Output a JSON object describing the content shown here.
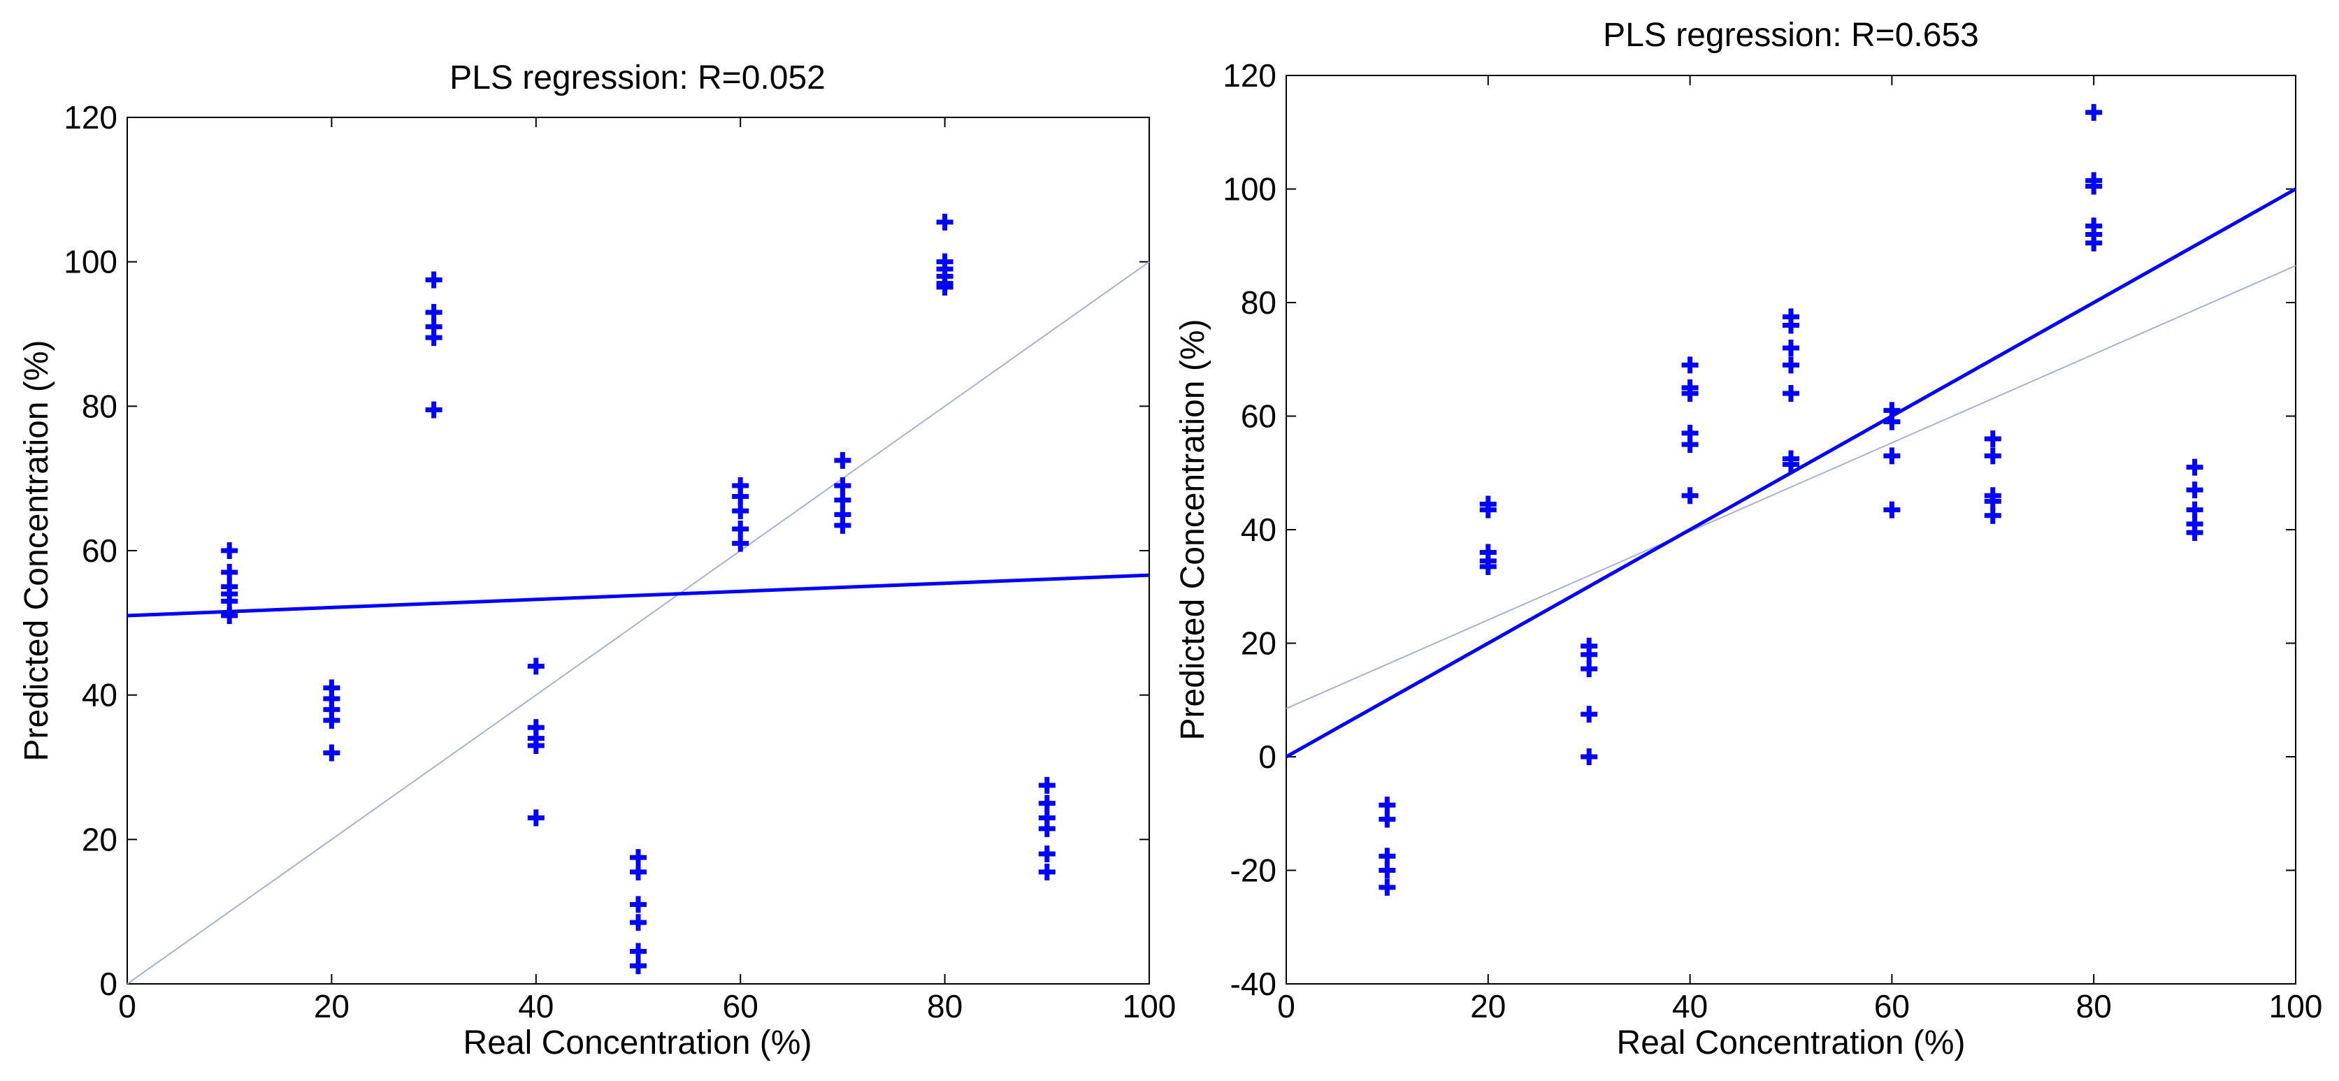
{
  "colors": {
    "marker": "#0000ff",
    "fit_line": "#0000ff",
    "diagonal_line": "#a8b0d8",
    "axis": "#000000"
  },
  "chart_data": [
    {
      "type": "scatter",
      "title": "PLS regression: R=0.052",
      "xlabel": "Real Concentration (%)",
      "ylabel": "Predicted Concentration (%)",
      "xlim": [
        0,
        100
      ],
      "ylim": [
        0,
        120
      ],
      "xticks": [
        0,
        20,
        40,
        60,
        80,
        100
      ],
      "yticks": [
        0,
        20,
        40,
        60,
        80,
        100,
        120
      ],
      "grid": false,
      "marker": "+",
      "points": [
        [
          10,
          60
        ],
        [
          10,
          57
        ],
        [
          10,
          55
        ],
        [
          10,
          54
        ],
        [
          10,
          53
        ],
        [
          10,
          51
        ],
        [
          20,
          41
        ],
        [
          20,
          39.5
        ],
        [
          20,
          38
        ],
        [
          20,
          36.5
        ],
        [
          20,
          32
        ],
        [
          30,
          97.5
        ],
        [
          30,
          93
        ],
        [
          30,
          91
        ],
        [
          30,
          89.5
        ],
        [
          30,
          79.5
        ],
        [
          40,
          44
        ],
        [
          40,
          35.5
        ],
        [
          40,
          34
        ],
        [
          40,
          33
        ],
        [
          40,
          23
        ],
        [
          50,
          17.5
        ],
        [
          50,
          15.5
        ],
        [
          50,
          11
        ],
        [
          50,
          8.5
        ],
        [
          50,
          4.5
        ],
        [
          50,
          2.5
        ],
        [
          60,
          69
        ],
        [
          60,
          67.5
        ],
        [
          60,
          65.5
        ],
        [
          60,
          63
        ],
        [
          60,
          61
        ],
        [
          70,
          72.5
        ],
        [
          70,
          69
        ],
        [
          70,
          67
        ],
        [
          70,
          65
        ],
        [
          70,
          63.5
        ],
        [
          80,
          105.5
        ],
        [
          80,
          100
        ],
        [
          80,
          99
        ],
        [
          80,
          98
        ],
        [
          80,
          97
        ],
        [
          80,
          96.5
        ],
        [
          90,
          27.5
        ],
        [
          90,
          25
        ],
        [
          90,
          23
        ],
        [
          90,
          21.5
        ],
        [
          90,
          18
        ],
        [
          90,
          15.5
        ]
      ],
      "fit_line": {
        "x": [
          0,
          100
        ],
        "y": [
          51,
          56.6
        ]
      },
      "diagonal_line": {
        "x": [
          0,
          100
        ],
        "y": [
          0,
          100
        ]
      }
    },
    {
      "type": "scatter",
      "title": "PLS regression: R=0.653",
      "xlabel": "Real Concentration (%)",
      "ylabel": "Predicted Concentration (%)",
      "xlim": [
        0,
        100
      ],
      "ylim": [
        -40,
        120
      ],
      "xticks": [
        0,
        20,
        40,
        60,
        80,
        100
      ],
      "yticks": [
        -40,
        -20,
        0,
        20,
        40,
        60,
        80,
        100,
        120
      ],
      "grid": false,
      "marker": "+",
      "points": [
        [
          10,
          -8.5
        ],
        [
          10,
          -11
        ],
        [
          10,
          -17.5
        ],
        [
          10,
          -20
        ],
        [
          10,
          -23
        ],
        [
          20,
          44.5
        ],
        [
          20,
          43.5
        ],
        [
          20,
          36
        ],
        [
          20,
          34.5
        ],
        [
          20,
          33.5
        ],
        [
          30,
          19.5
        ],
        [
          30,
          18
        ],
        [
          30,
          15.5
        ],
        [
          30,
          7.5
        ],
        [
          30,
          0
        ],
        [
          40,
          69
        ],
        [
          40,
          65
        ],
        [
          40,
          64
        ],
        [
          40,
          57
        ],
        [
          40,
          55
        ],
        [
          40,
          46
        ],
        [
          50,
          77.5
        ],
        [
          50,
          76
        ],
        [
          50,
          72
        ],
        [
          50,
          69
        ],
        [
          50,
          64
        ],
        [
          50,
          52.5
        ],
        [
          50,
          51.5
        ],
        [
          60,
          61
        ],
        [
          60,
          59
        ],
        [
          60,
          53
        ],
        [
          60,
          43.5
        ],
        [
          70,
          56
        ],
        [
          70,
          53
        ],
        [
          70,
          46
        ],
        [
          70,
          45
        ],
        [
          70,
          42.5
        ],
        [
          80,
          113.5
        ],
        [
          80,
          101.5
        ],
        [
          80,
          100.5
        ],
        [
          80,
          93.5
        ],
        [
          80,
          92
        ],
        [
          80,
          90.5
        ],
        [
          90,
          51
        ],
        [
          90,
          47
        ],
        [
          90,
          43.5
        ],
        [
          90,
          41
        ],
        [
          90,
          39.5
        ]
      ],
      "fit_line": {
        "x": [
          0,
          100
        ],
        "y": [
          0,
          100
        ]
      },
      "diagonal_line": {
        "x": [
          0,
          100
        ],
        "y": [
          8.5,
          86.5
        ]
      }
    }
  ]
}
